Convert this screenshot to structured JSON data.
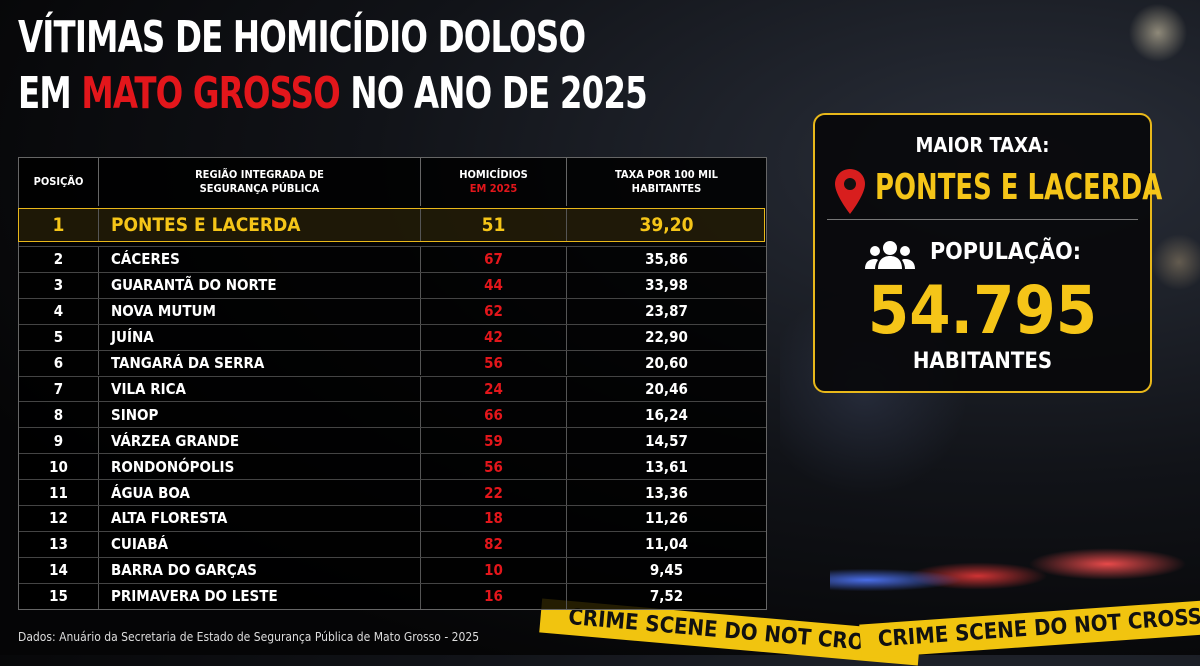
{
  "title": {
    "line1": "VÍTIMAS DE HOMICÍDIO DOLOSO",
    "line2_start": "EM ",
    "line2_highlight": "MATO GROSSO",
    "line2_end": " NO ANO DE 2025"
  },
  "table": {
    "headers": {
      "position": "POSIÇÃO",
      "region": "REGIÃO INTEGRADA DE SEGURANÇA PÚBLICA",
      "homicides": "HOMICÍDIOS",
      "homicides_year": "EM 2025",
      "rate": "TAXA POR 100 MIL HABITANTES"
    },
    "rows": [
      [
        1,
        "PONTES E LACERDA",
        51,
        "39,20"
      ],
      [
        2,
        "CÁCERES",
        67,
        "35,86"
      ],
      [
        3,
        "GUARANTÃ DO NORTE",
        44,
        "33,98"
      ],
      [
        4,
        "NOVA MUTUM",
        62,
        "23,87"
      ],
      [
        5,
        "JUÍNA",
        42,
        "22,90"
      ],
      [
        6,
        "TANGARÁ DA SERRA",
        56,
        "20,60"
      ],
      [
        7,
        "VILA RICA",
        24,
        "20,46"
      ],
      [
        8,
        "SINOP",
        66,
        "16,24"
      ],
      [
        9,
        "VÁRZEA GRANDE",
        59,
        "14,57"
      ],
      [
        10,
        "RONDONÓPOLIS",
        56,
        "13,61"
      ],
      [
        11,
        "ÁGUA BOA",
        22,
        "13,36"
      ],
      [
        12,
        "ALTA FLORESTA",
        18,
        "11,26"
      ],
      [
        13,
        "CUIABÁ",
        82,
        "11,04"
      ],
      [
        14,
        "BARRA DO GARÇAS",
        10,
        "9,45"
      ],
      [
        15,
        "PRIMAVERA DO LESTE",
        16,
        "7,52"
      ]
    ]
  },
  "panel": {
    "label": "MAIOR TAXA:",
    "city": "PONTES E LACERDA",
    "population_label": "POPULAÇÃO:",
    "population": "54.795",
    "population_unit": "HABITANTES"
  },
  "tape": [
    "CRIME SCENE DO NOT CROSS",
    "CRIME SCENE DO NOT CROSS"
  ],
  "source": "Dados: Anuário da Secretaria de Estado de Segurança Pública de Mato Grosso - 2025"
}
